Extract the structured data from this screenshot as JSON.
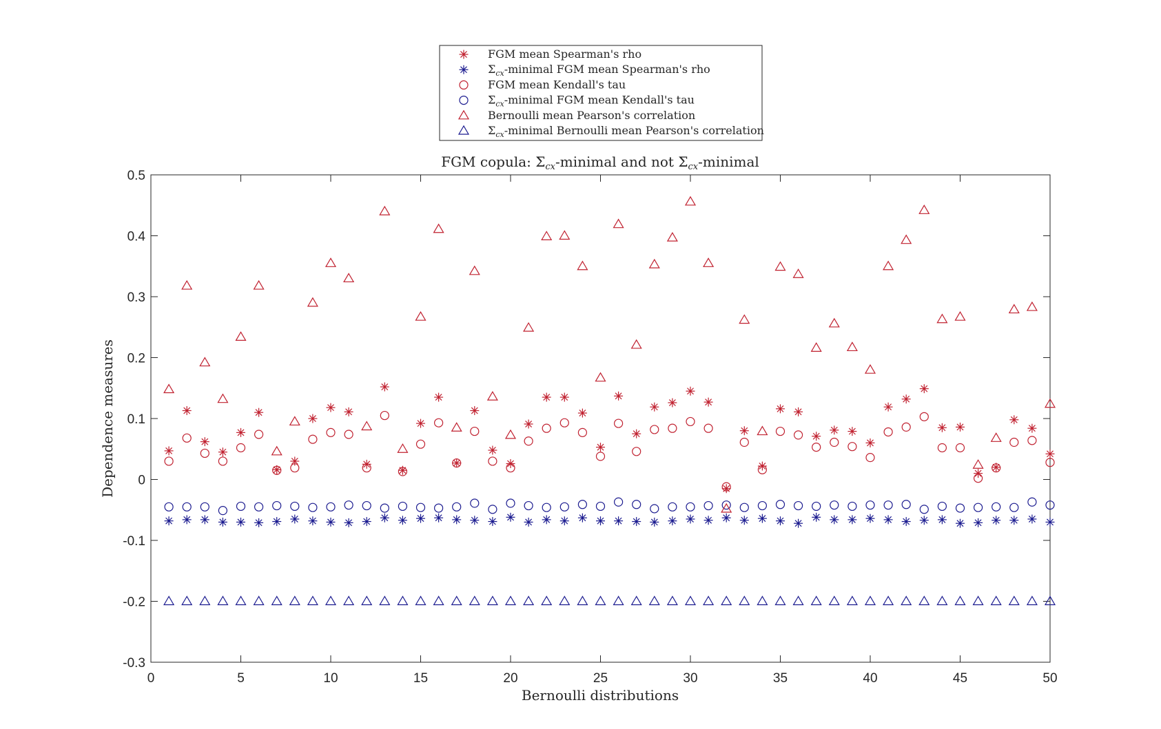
{
  "chart_data": {
    "type": "scatter",
    "title": "FGM copula: Σcx-minimal and not Σcx-minimal",
    "xlabel": "Bernoulli distributions",
    "ylabel": "Dependence measures",
    "xlim": [
      0,
      50
    ],
    "ylim": [
      -0.3,
      0.5
    ],
    "xticks": [
      "0",
      "5",
      "10",
      "15",
      "20",
      "25",
      "30",
      "35",
      "40",
      "45",
      "50"
    ],
    "yticks": [
      "-0.3",
      "-0.2",
      "-0.1",
      "0",
      "0.1",
      "0.2",
      "0.3",
      "0.4",
      "0.5"
    ],
    "grid": false,
    "legend_position": "top-center, outside axes",
    "x": [
      1,
      2,
      3,
      4,
      5,
      6,
      7,
      8,
      9,
      10,
      11,
      12,
      13,
      14,
      15,
      16,
      17,
      18,
      19,
      20,
      21,
      22,
      23,
      24,
      25,
      26,
      27,
      28,
      29,
      30,
      31,
      32,
      33,
      34,
      35,
      36,
      37,
      38,
      39,
      40,
      41,
      42,
      43,
      44,
      45,
      46,
      47,
      48,
      49,
      50
    ],
    "series": [
      {
        "name": "FGM mean Spearman's rho",
        "marker": "asterisk",
        "color": "#c0202f",
        "values": [
          0.047,
          0.113,
          0.062,
          0.045,
          0.077,
          0.11,
          0.016,
          0.03,
          0.1,
          0.118,
          0.111,
          0.025,
          0.152,
          0.015,
          0.092,
          0.135,
          0.027,
          0.113,
          0.048,
          0.026,
          0.091,
          0.135,
          0.135,
          0.109,
          0.053,
          0.137,
          0.075,
          0.119,
          0.126,
          0.145,
          0.127,
          -0.015,
          0.08,
          0.022,
          0.116,
          0.111,
          0.071,
          0.081,
          0.079,
          0.06,
          0.119,
          0.132,
          0.149,
          0.085,
          0.086,
          0.01,
          0.02,
          0.098,
          0.084,
          0.042
        ]
      },
      {
        "name": "Σcx-minimal FGM mean Spearman's rho",
        "marker": "asterisk",
        "color": "#1a1a8f",
        "values": [
          -0.068,
          -0.066,
          -0.066,
          -0.07,
          -0.07,
          -0.071,
          -0.069,
          -0.065,
          -0.068,
          -0.07,
          -0.071,
          -0.069,
          -0.063,
          -0.067,
          -0.064,
          -0.063,
          -0.066,
          -0.067,
          -0.069,
          -0.062,
          -0.07,
          -0.066,
          -0.068,
          -0.063,
          -0.068,
          -0.068,
          -0.069,
          -0.07,
          -0.068,
          -0.065,
          -0.067,
          -0.063,
          -0.067,
          -0.064,
          -0.068,
          -0.072,
          -0.062,
          -0.066,
          -0.066,
          -0.064,
          -0.066,
          -0.069,
          -0.067,
          -0.066,
          -0.072,
          -0.071,
          -0.067,
          -0.067,
          -0.065,
          -0.07
        ]
      },
      {
        "name": "FGM mean Kendall's tau",
        "marker": "circle",
        "color": "#c0202f",
        "values": [
          0.03,
          0.068,
          0.043,
          0.03,
          0.052,
          0.074,
          0.015,
          0.019,
          0.066,
          0.077,
          0.074,
          0.019,
          0.105,
          0.013,
          0.058,
          0.093,
          0.027,
          0.079,
          0.03,
          0.019,
          0.063,
          0.084,
          0.093,
          0.077,
          0.038,
          0.092,
          0.046,
          0.082,
          0.084,
          0.095,
          0.084,
          -0.012,
          0.061,
          0.016,
          0.079,
          0.073,
          0.053,
          0.061,
          0.054,
          0.036,
          0.078,
          0.086,
          0.103,
          0.052,
          0.052,
          0.002,
          0.019,
          0.061,
          0.064,
          0.028
        ]
      },
      {
        "name": "Σcx-minimal FGM mean Kendall's tau",
        "marker": "circle",
        "color": "#1a1a8f",
        "values": [
          -0.045,
          -0.045,
          -0.045,
          -0.051,
          -0.044,
          -0.045,
          -0.043,
          -0.044,
          -0.046,
          -0.045,
          -0.042,
          -0.043,
          -0.047,
          -0.044,
          -0.046,
          -0.047,
          -0.045,
          -0.039,
          -0.049,
          -0.039,
          -0.043,
          -0.046,
          -0.045,
          -0.041,
          -0.044,
          -0.037,
          -0.041,
          -0.048,
          -0.045,
          -0.045,
          -0.043,
          -0.042,
          -0.046,
          -0.043,
          -0.041,
          -0.043,
          -0.044,
          -0.042,
          -0.044,
          -0.042,
          -0.042,
          -0.041,
          -0.049,
          -0.044,
          -0.047,
          -0.046,
          -0.045,
          -0.046,
          -0.037,
          -0.042
        ]
      },
      {
        "name": "Bernoulli mean Pearson's correlation",
        "marker": "triangle",
        "color": "#c0202f",
        "values": [
          0.148,
          0.318,
          0.192,
          0.132,
          0.234,
          0.318,
          0.046,
          0.095,
          0.29,
          0.355,
          0.33,
          0.087,
          0.44,
          0.05,
          0.267,
          0.411,
          0.085,
          0.342,
          0.136,
          0.073,
          0.249,
          0.399,
          0.4,
          0.35,
          0.167,
          0.419,
          0.221,
          0.353,
          0.397,
          0.456,
          0.355,
          -0.048,
          0.262,
          0.079,
          0.349,
          0.337,
          0.216,
          0.256,
          0.217,
          0.18,
          0.35,
          0.393,
          0.442,
          0.263,
          0.267,
          0.024,
          0.068,
          0.279,
          0.283,
          0.124
        ]
      },
      {
        "name": "Σcx-minimal Bernoulli mean Pearson's correlation",
        "marker": "triangle",
        "color": "#1a1a8f",
        "values": [
          -0.2,
          -0.2,
          -0.2,
          -0.2,
          -0.2,
          -0.2,
          -0.2,
          -0.2,
          -0.2,
          -0.2,
          -0.2,
          -0.2,
          -0.2,
          -0.2,
          -0.2,
          -0.2,
          -0.2,
          -0.2,
          -0.2,
          -0.2,
          -0.2,
          -0.2,
          -0.2,
          -0.2,
          -0.2,
          -0.2,
          -0.2,
          -0.2,
          -0.2,
          -0.2,
          -0.2,
          -0.2,
          -0.2,
          -0.2,
          -0.2,
          -0.2,
          -0.2,
          -0.2,
          -0.2,
          -0.2,
          -0.2,
          -0.2,
          -0.2,
          -0.2,
          -0.2,
          -0.2,
          -0.2,
          -0.2,
          -0.2,
          -0.2
        ]
      }
    ]
  },
  "title_parts": {
    "t1": "FGM copula: ",
    "sigma": "Σ",
    "sub": "cx",
    "t2": "-minimal and not ",
    "t3": "-minimal"
  },
  "legend": {
    "items": [
      {
        "prefix": "",
        "sub": "",
        "text": "FGM mean Spearman's rho"
      },
      {
        "prefix": "Σ",
        "sub": "cx",
        "text": "-minimal FGM mean Spearman's rho"
      },
      {
        "prefix": "",
        "sub": "",
        "text": "FGM mean Kendall's tau"
      },
      {
        "prefix": "Σ",
        "sub": "cx",
        "text": "-minimal FGM mean Kendall's tau"
      },
      {
        "prefix": "",
        "sub": "",
        "text": "Bernoulli mean Pearson's correlation"
      },
      {
        "prefix": "Σ",
        "sub": "cx",
        "text": "-minimal Bernoulli mean Pearson's correlation"
      }
    ]
  }
}
